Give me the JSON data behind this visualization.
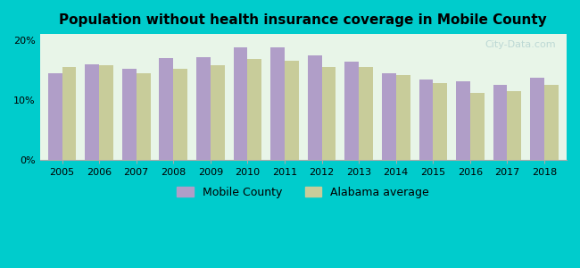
{
  "title": "Population without health insurance coverage in Mobile County",
  "years": [
    2005,
    2006,
    2007,
    2008,
    2009,
    2010,
    2011,
    2012,
    2013,
    2014,
    2015,
    2016,
    2017,
    2018
  ],
  "mobile_county": [
    14.5,
    16.0,
    15.2,
    17.0,
    17.2,
    18.8,
    18.8,
    17.5,
    16.4,
    14.5,
    13.5,
    13.2,
    12.5,
    13.8
  ],
  "alabama_avg": [
    15.5,
    15.8,
    14.5,
    15.2,
    15.8,
    16.8,
    16.5,
    15.5,
    15.5,
    14.2,
    12.8,
    11.2,
    11.5,
    12.5
  ],
  "mobile_color": "#b09ec8",
  "alabama_color": "#c8cc9a",
  "background_outer": "#00cccc",
  "background_inner": "#e8f5e8",
  "ylim": [
    0,
    21
  ],
  "yticks": [
    0,
    10,
    20
  ],
  "ytick_labels": [
    "0%",
    "10%",
    "20%"
  ],
  "bar_width": 0.38,
  "legend_mobile": "Mobile County",
  "legend_alabama": "Alabama average"
}
